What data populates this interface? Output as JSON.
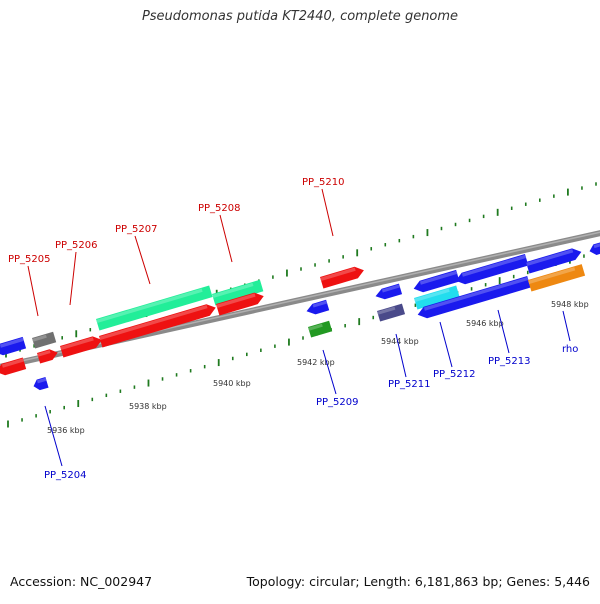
{
  "header": {
    "title": "Pseudomonas putida KT2440, complete genome"
  },
  "footer": {
    "accession": "Accession: NC_002947",
    "summary": "Topology: circular; Length: 6,181,863 bp; Genes: 5,446"
  },
  "colors": {
    "backbone": "#8a8a8a",
    "tick": "#1f7a1f",
    "label_forward": "#cc0000",
    "label_reverse": "#0000cc",
    "red": "#ee1111",
    "blue": "#1a1aee",
    "teal": "#22ee99",
    "cyan": "#22ddee",
    "gray": "#707070",
    "green": "#229922",
    "slate": "#4a4a8a",
    "orange": "#ee8811"
  },
  "scale_labels": [
    {
      "kbp": 5936,
      "text": "5936 kbp"
    },
    {
      "kbp": 5938,
      "text": "5938 kbp"
    },
    {
      "kbp": 5940,
      "text": "5940 kbp"
    },
    {
      "kbp": 5942,
      "text": "5942 kbp"
    },
    {
      "kbp": 5944,
      "text": "5944 kbp"
    },
    {
      "kbp": 5946,
      "text": "5946 kbp"
    },
    {
      "kbp": 5948,
      "text": "5948 kbp"
    }
  ],
  "gene_labels": [
    {
      "text": "PP_5204",
      "strand": "reverse"
    },
    {
      "text": "PP_5205",
      "strand": "forward"
    },
    {
      "text": "PP_5206",
      "strand": "forward"
    },
    {
      "text": "PP_5207",
      "strand": "forward"
    },
    {
      "text": "PP_5208",
      "strand": "forward"
    },
    {
      "text": "PP_5209",
      "strand": "reverse"
    },
    {
      "text": "PP_5210",
      "strand": "forward"
    },
    {
      "text": "PP_5211",
      "strand": "reverse"
    },
    {
      "text": "PP_5212",
      "strand": "reverse"
    },
    {
      "text": "PP_5213",
      "strand": "reverse"
    },
    {
      "text": "rho",
      "strand": "reverse"
    }
  ]
}
